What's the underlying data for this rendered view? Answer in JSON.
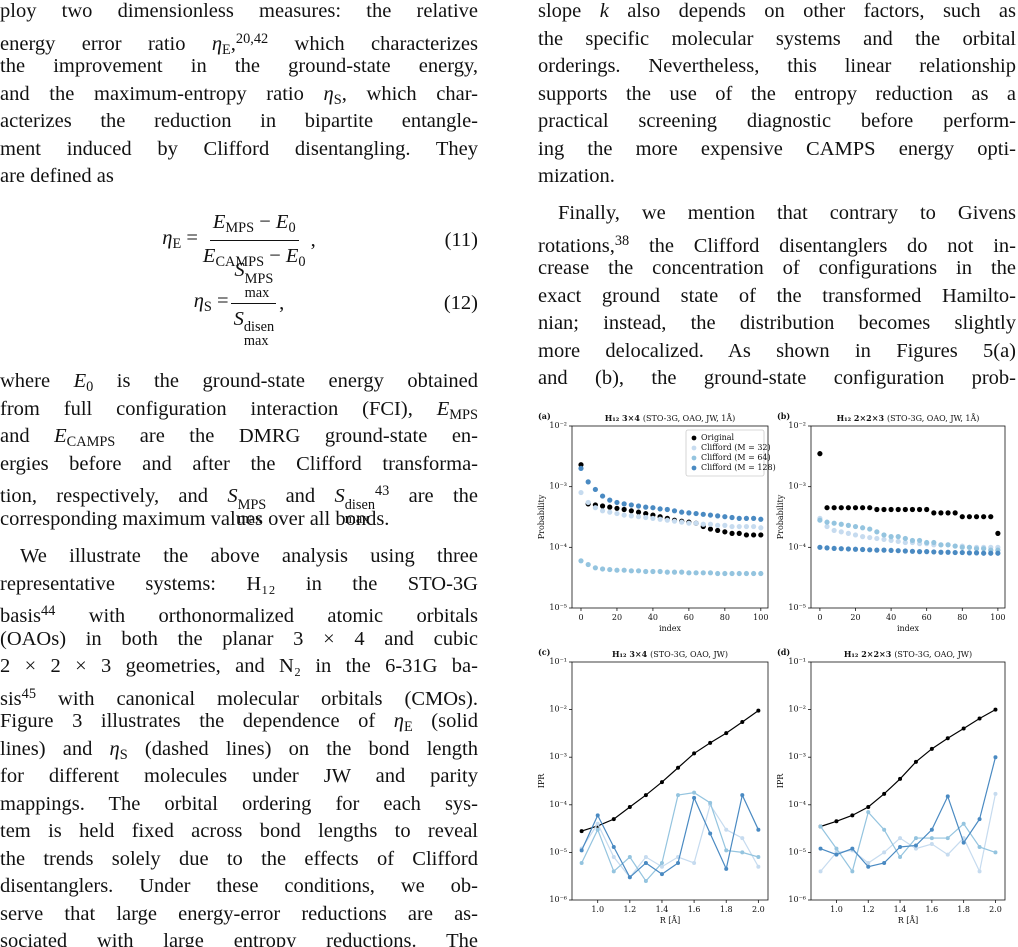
{
  "left_column": {
    "blocks": [
      {
        "lines": [
          [
            "ploy two dimensionless measures: the relative"
          ],
          [
            "energy error ratio ",
            {
              "t": "η",
              "sub": "E"
            },
            ",",
            {
              "sup": "20,42"
            },
            " which characterizes"
          ],
          [
            "the improvement in the ground-state energy,"
          ],
          [
            "and the maximum-entropy ratio ",
            {
              "t": "η",
              "sub": "S"
            },
            ", which char-"
          ],
          [
            "acterizes the reduction in bipartite entangle-"
          ],
          [
            "ment induced by Clifford disentangling. They"
          ],
          [
            "are defined as"
          ]
        ]
      },
      {
        "lhs": [
          {
            "t": "η",
            "sub": "E"
          },
          " = "
        ],
        "num": [
          {
            "t": "E",
            "sub": "MPS"
          },
          " − ",
          {
            "t": "E",
            "sub": "0"
          }
        ],
        "den": [
          {
            "t": "E",
            "sub": "CAMPS"
          },
          " − ",
          {
            "t": "E",
            "sub": "0"
          }
        ],
        "after": [
          ","
        ],
        "number": "(11)"
      },
      {
        "lhs": [
          {
            "t": "η",
            "sub": "S"
          },
          " = "
        ],
        "num": [
          {
            "t": "S",
            "sub": "max",
            "sup": "MPS"
          }
        ],
        "den": [
          {
            "t": "S",
            "sub": "max",
            "sup": "disen"
          }
        ],
        "after": [
          ","
        ],
        "number": "(12)"
      },
      {
        "lines": [
          [
            "where ",
            {
              "t": "E",
              "sub": "0"
            },
            " is the ground-state energy obtained"
          ],
          [
            "from full configuration interaction (FCI), ",
            {
              "t": "E",
              "sub": "MPS"
            }
          ],
          [
            "and ",
            {
              "t": "E",
              "sub": "CAMPS"
            },
            " are the DMRG ground-state en-"
          ],
          [
            "ergies before and after the Clifford transforma-"
          ],
          [
            "tion, respectively, and ",
            {
              "t": "S",
              "sub": "max",
              "sup": "MPS"
            },
            " and ",
            {
              "t": "S",
              "sub": "max",
              "sup": "disen"
            },
            {
              "sup": "43"
            },
            " are the"
          ],
          [
            "corresponding maximum values over all bonds."
          ]
        ]
      },
      {
        "lines": [
          [
            "We illustrate the above analysis using three"
          ],
          [
            "representative systems: H₁₂ in the STO-3G"
          ],
          [
            "basis",
            {
              "sup": "44"
            },
            " with orthonormalized atomic orbitals"
          ],
          [
            "(OAOs) in both the planar 3 × 4 and cubic"
          ],
          [
            "2 × 2 × 3 geometries, and N₂ in the 6-31G ba-"
          ],
          [
            "sis",
            {
              "sup": "45"
            },
            " with canonical molecular orbitals (CMOs)."
          ],
          [
            "Figure 3 illustrates the dependence of ",
            {
              "t": "η",
              "sub": "E"
            },
            " (solid"
          ],
          [
            "lines) and ",
            {
              "t": "η",
              "sub": "S"
            },
            " (dashed lines) on the bond length"
          ],
          [
            "for different molecules under JW and parity"
          ],
          [
            "mappings. The orbital ordering for each sys-"
          ],
          [
            "tem is held fixed across bond lengths to reveal"
          ],
          [
            "the trends solely due to the effects of Clifford"
          ],
          [
            "disentanglers. Under these conditions, we ob-"
          ],
          [
            "serve that large energy-error reductions are as-"
          ],
          [
            "sociated with large entropy reductions. The"
          ]
        ]
      }
    ]
  },
  "right_column": {
    "blocks": [
      {
        "lines": [
          [
            "slope ",
            {
              "t": "k"
            },
            " also depends on other factors, such as"
          ],
          [
            "the specific molecular systems and the orbital"
          ],
          [
            "orderings. Nevertheless, this linear relationship"
          ],
          [
            "supports the use of the entropy reduction as a"
          ],
          [
            "practical screening diagnostic before perform-"
          ],
          [
            "ing the more expensive CAMPS energy opti-"
          ],
          [
            "mization."
          ]
        ]
      },
      {
        "lines": [
          [
            "Finally, we mention that contrary to Givens"
          ],
          [
            "rotations,",
            {
              "sup": "38"
            },
            " the Clifford disentanglers do not in-"
          ],
          [
            "crease the concentration of configurations in the"
          ],
          [
            "exact ground state of the transformed Hamilto-"
          ],
          [
            "nian; instead, the distribution becomes slightly"
          ],
          [
            "more delocalized. As shown in Figures 5(a)"
          ],
          [
            "and (b), the ground-state configuration prob-"
          ]
        ]
      }
    ]
  },
  "chart_data": [
    {
      "type": "scatter",
      "panel": "(a)",
      "title_bold": "H₁₂ 3×4",
      "title": "(STO-3G, OAO, JW, 1Å)",
      "xlabel": "index",
      "ylabel": "Probability",
      "log_y": true,
      "legend": "upper right",
      "x": [
        0,
        4,
        8,
        12,
        16,
        20,
        24,
        28,
        32,
        36,
        40,
        44,
        48,
        52,
        56,
        60,
        64,
        68,
        72,
        76,
        80,
        84,
        88,
        92,
        96,
        100
      ],
      "xlim": [
        -5,
        104
      ],
      "xticks": [
        0,
        20,
        40,
        60,
        80,
        100
      ],
      "ylim": [
        1e-05,
        0.01
      ],
      "yticks": [
        {
          "value": 1e-05,
          "label": "10⁻⁵"
        },
        {
          "value": 0.0001,
          "label": "10⁻⁴"
        },
        {
          "value": 0.001,
          "label": "10⁻³"
        },
        {
          "value": 0.01,
          "label": "10⁻²"
        }
      ],
      "series": [
        {
          "name": "Original",
          "color": "#000000",
          "values": [
            0.0023,
            0.00052,
            0.0005,
            0.00048,
            0.00046,
            0.00044,
            0.00042,
            0.0004,
            0.00038,
            0.00036,
            0.00034,
            0.00032,
            0.0003,
            0.00028,
            0.00027,
            0.00026,
            0.00025,
            0.00022,
            0.0002,
            0.00019,
            0.00018,
            0.00017,
            0.00017,
            0.00016,
            0.00016,
            0.00016
          ]
        },
        {
          "name": "Clifford (M = 32)",
          "color": "#c6dbef",
          "values": [
            0.0008,
            0.00055,
            0.00045,
            0.0004,
            0.00038,
            0.00036,
            0.00034,
            0.00033,
            0.00032,
            0.00031,
            0.0003,
            0.00029,
            0.00028,
            0.00027,
            0.00026,
            0.00025,
            0.00025,
            0.00024,
            0.00024,
            0.00023,
            0.00023,
            0.00022,
            0.00022,
            0.00022,
            0.00022,
            0.00021
          ]
        },
        {
          "name": "Clifford (M = 64)",
          "color": "#94c4df",
          "values": [
            6e-05,
            5.2e-05,
            4.6e-05,
            4.4e-05,
            4.3e-05,
            4.2e-05,
            4.2e-05,
            4.1e-05,
            4.1e-05,
            4e-05,
            4e-05,
            4e-05,
            3.9e-05,
            3.9e-05,
            3.9e-05,
            3.8e-05,
            3.8e-05,
            3.8e-05,
            3.8e-05,
            3.7e-05,
            3.7e-05,
            3.7e-05,
            3.7e-05,
            3.7e-05,
            3.7e-05,
            3.7e-05
          ]
        },
        {
          "name": "Clifford (M = 128)",
          "color": "#4a8ac2",
          "values": [
            0.002,
            0.0012,
            0.0009,
            0.0007,
            0.0006,
            0.00055,
            0.00052,
            0.0005,
            0.00048,
            0.00046,
            0.00045,
            0.00043,
            0.00042,
            0.0004,
            0.00038,
            0.00037,
            0.00036,
            0.00035,
            0.00034,
            0.00033,
            0.00032,
            0.00031,
            0.0003,
            0.0003,
            0.0003,
            0.00029
          ]
        }
      ]
    },
    {
      "type": "scatter",
      "panel": "(b)",
      "title_bold": "H₁₂ 2×2×3",
      "title": "(STO-3G, OAO, JW, 1Å)",
      "xlabel": "index",
      "ylabel": "Probability",
      "log_y": true,
      "x": [
        0,
        4,
        8,
        12,
        16,
        20,
        24,
        28,
        32,
        36,
        40,
        44,
        48,
        52,
        56,
        60,
        64,
        68,
        72,
        76,
        80,
        84,
        88,
        92,
        96,
        100
      ],
      "xlim": [
        -5,
        104
      ],
      "xticks": [
        0,
        20,
        40,
        60,
        80,
        100
      ],
      "ylim": [
        1e-05,
        0.01
      ],
      "yticks": [
        {
          "value": 1e-05,
          "label": "10⁻⁵"
        },
        {
          "value": 0.0001,
          "label": "10⁻⁴"
        },
        {
          "value": 0.001,
          "label": "10⁻³"
        },
        {
          "value": 0.01,
          "label": "10⁻²"
        }
      ],
      "series": [
        {
          "color": "#000000",
          "values": [
            0.0035,
            0.00045,
            0.00045,
            0.00045,
            0.00045,
            0.00045,
            0.00045,
            0.00045,
            0.00042,
            0.00042,
            0.00042,
            0.00042,
            0.00042,
            0.00042,
            0.00042,
            0.00042,
            0.00037,
            0.00037,
            0.00037,
            0.00037,
            0.00032,
            0.00032,
            0.00032,
            0.00032,
            0.00032,
            0.00017
          ]
        },
        {
          "color": "#c6dbef",
          "values": [
            0.0003,
            0.00022,
            0.00019,
            0.00018,
            0.00017,
            0.00016,
            0.00015,
            0.000145,
            0.00014,
            0.000135,
            0.00013,
            0.000125,
            0.00012,
            0.00012,
            0.000115,
            0.000115,
            0.00011,
            0.00011,
            0.00011,
            0.000105,
            0.000105,
            0.0001,
            0.0001,
            0.0001,
            0.0001,
            0.0001
          ]
        },
        {
          "color": "#94c4df",
          "values": [
            0.00028,
            0.00026,
            0.00025,
            0.00024,
            0.00023,
            0.00022,
            0.00021,
            0.0002,
            0.00018,
            0.00016,
            0.00015,
            0.00015,
            0.00014,
            0.00013,
            0.00013,
            0.00012,
            0.00012,
            0.00011,
            0.00011,
            0.000105,
            0.0001,
            0.0001,
            9.5e-05,
            9.5e-05,
            9e-05,
            9e-05
          ]
        },
        {
          "color": "#4a8ac2",
          "values": [
            0.0001,
            9.8e-05,
            9.6e-05,
            9.5e-05,
            9.4e-05,
            9.3e-05,
            9.2e-05,
            9.1e-05,
            9e-05,
            9e-05,
            8.9e-05,
            8.8e-05,
            8.7e-05,
            8.6e-05,
            8.5e-05,
            8.5e-05,
            8.4e-05,
            8.3e-05,
            8.3e-05,
            8.2e-05,
            8.2e-05,
            8.1e-05,
            8.1e-05,
            8e-05,
            8e-05,
            8e-05
          ]
        }
      ]
    },
    {
      "type": "line",
      "panel": "(c)",
      "title_bold": "H₁₂ 3×4",
      "title": "(STO-3G, OAO, JW)",
      "xlabel": "R [Å]",
      "ylabel": "IPR",
      "log_y": true,
      "x": [
        0.9,
        1,
        1.1,
        1.2,
        1.3,
        1.4,
        1.5,
        1.6,
        1.7,
        1.8,
        1.9,
        2
      ],
      "xlim": [
        0.84,
        2.06
      ],
      "xticks": [
        {
          "value": 1,
          "label": "1.0"
        },
        1.2,
        1.4,
        1.6,
        1.8,
        {
          "value": 2,
          "label": "2.0"
        }
      ],
      "ylim": [
        1e-06,
        0.1
      ],
      "yticks": [
        {
          "value": 1e-06,
          "label": "10⁻⁶"
        },
        {
          "value": 1e-05,
          "label": "10⁻⁵"
        },
        {
          "value": 0.0001,
          "label": "10⁻⁴"
        },
        {
          "value": 0.001,
          "label": "10⁻³"
        },
        {
          "value": 0.01,
          "label": "10⁻²"
        },
        {
          "value": 0.1,
          "label": "10⁻¹"
        }
      ],
      "series": [
        {
          "color": "#000000",
          "values": [
            2.8e-05,
            3.6e-05,
            5e-05,
            9e-05,
            0.00016,
            0.0003,
            0.0006,
            0.0012,
            0.002,
            0.0032,
            0.0055,
            0.0095
          ]
        },
        {
          "color": "#c6dbef",
          "values": [
            1.2e-05,
            4e-05,
            8e-06,
            3e-06,
            8e-06,
            5e-06,
            8e-06,
            6e-06,
            0.0001,
            3e-05,
            2e-05,
            5e-06
          ]
        },
        {
          "color": "#94c4df",
          "values": [
            6e-06,
            3e-05,
            4e-06,
            8e-06,
            2.5e-06,
            6e-06,
            0.00016,
            0.00018,
            0.00011,
            1.1e-05,
            1e-05,
            8e-06
          ]
        },
        {
          "color": "#4a8ac2",
          "values": [
            1.1e-05,
            6e-05,
            1.3e-05,
            3e-06,
            6e-06,
            3.5e-06,
            6e-06,
            0.00014,
            2.5e-05,
            4.5e-06,
            0.00016,
            3e-05
          ]
        }
      ]
    },
    {
      "type": "line",
      "panel": "(d)",
      "title_bold": "H₁₂ 2×2×3",
      "title": "(STO-3G, OAO, JW)",
      "xlabel": "R [Å]",
      "ylabel": "IPR",
      "log_y": true,
      "x": [
        0.9,
        1,
        1.1,
        1.2,
        1.3,
        1.4,
        1.5,
        1.6,
        1.7,
        1.8,
        1.9,
        2
      ],
      "xlim": [
        0.84,
        2.06
      ],
      "xticks": [
        {
          "value": 1,
          "label": "1.0"
        },
        1.2,
        1.4,
        1.6,
        1.8,
        {
          "value": 2,
          "label": "2.0"
        }
      ],
      "ylim": [
        1e-06,
        0.1
      ],
      "yticks": [
        {
          "value": 1e-06,
          "label": "10⁻⁶"
        },
        {
          "value": 1e-05,
          "label": "10⁻⁵"
        },
        {
          "value": 0.0001,
          "label": "10⁻⁴"
        },
        {
          "value": 0.001,
          "label": "10⁻³"
        },
        {
          "value": 0.01,
          "label": "10⁻²"
        },
        {
          "value": 0.1,
          "label": "10⁻¹"
        }
      ],
      "series": [
        {
          "color": "#000000",
          "values": [
            3.5e-05,
            4.5e-05,
            6e-05,
            9e-05,
            0.00017,
            0.00035,
            0.0008,
            0.0015,
            0.0025,
            0.004,
            0.0065,
            0.01
          ]
        },
        {
          "color": "#c6dbef",
          "values": [
            4e-06,
            1e-05,
            1.1e-05,
            6e-06,
            1e-05,
            2e-05,
            1.2e-05,
            1.5e-05,
            9e-06,
            2e-05,
            4e-06,
            0.00017
          ]
        },
        {
          "color": "#94c4df",
          "values": [
            3.5e-05,
            1.2e-05,
            4e-06,
            7e-05,
            3e-05,
            8e-06,
            2e-05,
            2e-05,
            2e-05,
            4e-05,
            1.3e-05,
            1e-05
          ]
        },
        {
          "color": "#4a8ac2",
          "values": [
            1.2e-05,
            9e-06,
            1.2e-05,
            5e-06,
            6e-06,
            1.3e-05,
            1.4e-05,
            3e-05,
            0.00015,
            1.6e-05,
            5e-05,
            0.001
          ]
        }
      ]
    }
  ]
}
